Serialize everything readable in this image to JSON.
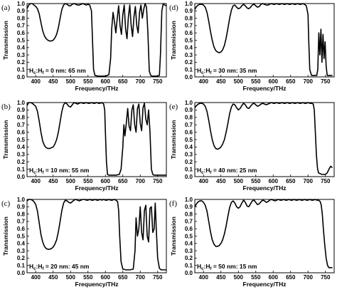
{
  "chart_data": [
    {
      "type": "line",
      "panel_label": "(a)",
      "annotation": {
        "main": "H",
        "sub1": "c",
        "sep": ":H",
        "sub2": "f",
        "rest": " = 0 nm: 65 nm"
      },
      "xlabel": "Frequency/THz",
      "ylabel": "Transmission",
      "xlim": [
        375,
        775
      ],
      "ylim": [
        0,
        1.0
      ],
      "xticks": [
        400,
        450,
        500,
        550,
        600,
        650,
        700,
        750
      ],
      "yticks": [
        0.0,
        0.1,
        0.2,
        0.3,
        0.4,
        0.5,
        0.6,
        0.7,
        0.8,
        0.9,
        1.0
      ],
      "x": [
        375,
        380,
        385,
        390,
        395,
        400,
        405,
        410,
        415,
        420,
        425,
        430,
        435,
        440,
        445,
        450,
        455,
        460,
        465,
        470,
        475,
        480,
        485,
        490,
        495,
        500,
        505,
        510,
        515,
        520,
        525,
        530,
        535,
        540,
        545,
        550,
        555,
        560,
        563,
        566,
        570,
        580,
        590,
        600,
        610,
        615,
        618,
        622,
        626,
        630,
        634,
        638,
        642,
        646,
        650,
        654,
        658,
        662,
        666,
        670,
        674,
        678,
        682,
        686,
        690,
        694,
        698,
        702,
        706,
        710,
        714,
        718,
        722,
        726,
        730,
        735,
        740,
        745,
        750,
        755,
        758,
        762,
        766,
        770,
        775
      ],
      "y": [
        0.93,
        0.98,
        1.0,
        1.0,
        0.98,
        0.96,
        0.93,
        0.86,
        0.74,
        0.63,
        0.56,
        0.52,
        0.5,
        0.49,
        0.49,
        0.5,
        0.53,
        0.58,
        0.67,
        0.8,
        0.92,
        0.98,
        1.0,
        0.99,
        0.97,
        0.97,
        0.99,
        1.0,
        0.99,
        0.98,
        0.98,
        0.99,
        1.0,
        0.99,
        0.98,
        0.99,
        0.98,
        0.9,
        0.5,
        0.1,
        0.02,
        0.01,
        0.01,
        0.01,
        0.03,
        0.25,
        0.65,
        0.88,
        0.75,
        0.6,
        0.8,
        0.97,
        0.7,
        0.58,
        0.85,
        0.98,
        0.65,
        0.52,
        0.82,
        0.98,
        0.7,
        0.55,
        0.82,
        0.96,
        0.7,
        0.6,
        0.88,
        0.98,
        0.8,
        0.92,
        1.0,
        0.95,
        0.6,
        0.08,
        0.02,
        0.01,
        0.01,
        0.01,
        0.01,
        0.02,
        0.3,
        0.9,
        1.0,
        0.98,
        0.97
      ]
    },
    {
      "type": "line",
      "panel_label": "(b)",
      "annotation": {
        "main": "H",
        "sub1": "c",
        "sep": ":H",
        "sub2": "f",
        "rest": " = 10 nm: 55 nm"
      },
      "xlabel": "Frequency/THz",
      "ylabel": "Transmission",
      "xlim": [
        375,
        775
      ],
      "ylim": [
        0,
        1.0
      ],
      "xticks": [
        400,
        450,
        500,
        550,
        600,
        650,
        700,
        750
      ],
      "yticks": [
        0.0,
        0.1,
        0.2,
        0.3,
        0.4,
        0.5,
        0.6,
        0.7,
        0.8,
        0.9,
        1.0
      ],
      "x": [
        375,
        380,
        385,
        390,
        395,
        400,
        405,
        410,
        415,
        420,
        425,
        430,
        435,
        440,
        445,
        450,
        455,
        460,
        465,
        470,
        475,
        480,
        485,
        490,
        495,
        500,
        505,
        510,
        515,
        520,
        525,
        530,
        535,
        540,
        545,
        550,
        555,
        560,
        565,
        570,
        575,
        580,
        585,
        590,
        595,
        598,
        600,
        603,
        606,
        610,
        620,
        630,
        640,
        645,
        650,
        653,
        656,
        660,
        664,
        668,
        672,
        676,
        680,
        684,
        688,
        692,
        696,
        700,
        704,
        708,
        712,
        716,
        720,
        724,
        728,
        732,
        736,
        740,
        745,
        750,
        755,
        760,
        765,
        770,
        775
      ],
      "y": [
        0.96,
        1.0,
        1.0,
        0.99,
        0.97,
        0.95,
        0.88,
        0.75,
        0.6,
        0.48,
        0.42,
        0.39,
        0.38,
        0.38,
        0.39,
        0.4,
        0.44,
        0.5,
        0.6,
        0.74,
        0.88,
        0.97,
        1.0,
        0.98,
        0.95,
        0.94,
        0.97,
        1.0,
        0.99,
        0.98,
        0.99,
        1.0,
        0.99,
        0.99,
        1.0,
        0.99,
        0.99,
        1.0,
        0.99,
        0.99,
        1.0,
        0.99,
        0.99,
        1.0,
        0.98,
        0.9,
        0.6,
        0.2,
        0.03,
        0.02,
        0.02,
        0.02,
        0.03,
        0.1,
        0.4,
        0.7,
        0.55,
        0.72,
        0.92,
        0.68,
        0.62,
        0.9,
        0.97,
        0.7,
        0.6,
        0.92,
        0.98,
        0.72,
        0.62,
        0.93,
        0.99,
        0.78,
        0.7,
        0.9,
        0.6,
        0.1,
        0.03,
        0.02,
        0.02,
        0.02,
        0.02,
        0.02,
        0.02,
        0.02,
        0.02
      ]
    },
    {
      "type": "line",
      "panel_label": "(c)",
      "annotation": {
        "main": "H",
        "sub1": "c",
        "sep": ":H",
        "sub2": "f",
        "rest": " = 20 nm: 45 nm"
      },
      "xlabel": "Frequency/THz",
      "ylabel": "Transmission",
      "xlim": [
        375,
        775
      ],
      "ylim": [
        0,
        1.0
      ],
      "xticks": [
        400,
        450,
        500,
        550,
        600,
        650,
        700,
        750
      ],
      "yticks": [
        0.0,
        0.1,
        0.2,
        0.3,
        0.4,
        0.5,
        0.6,
        0.7,
        0.8,
        0.9,
        1.0
      ],
      "x": [
        375,
        380,
        385,
        390,
        395,
        400,
        405,
        410,
        415,
        420,
        425,
        430,
        435,
        440,
        445,
        450,
        455,
        460,
        465,
        470,
        475,
        480,
        485,
        490,
        495,
        500,
        505,
        510,
        515,
        520,
        525,
        530,
        535,
        540,
        545,
        550,
        555,
        560,
        565,
        570,
        575,
        580,
        585,
        590,
        595,
        600,
        605,
        610,
        615,
        620,
        625,
        630,
        635,
        638,
        641,
        645,
        650,
        660,
        670,
        680,
        685,
        688,
        692,
        696,
        700,
        704,
        708,
        712,
        716,
        720,
        724,
        728,
        732,
        736,
        740,
        743,
        746,
        750,
        755,
        760,
        765,
        770,
        775
      ],
      "y": [
        0.98,
        1.0,
        1.0,
        0.99,
        0.97,
        0.93,
        0.84,
        0.68,
        0.52,
        0.42,
        0.36,
        0.33,
        0.32,
        0.32,
        0.33,
        0.35,
        0.39,
        0.45,
        0.56,
        0.7,
        0.85,
        0.95,
        0.99,
        0.98,
        0.96,
        0.95,
        0.97,
        0.99,
        1.0,
        0.99,
        0.98,
        0.99,
        1.0,
        1.0,
        0.99,
        0.99,
        1.0,
        0.99,
        0.99,
        1.0,
        0.99,
        0.99,
        1.0,
        0.99,
        1.0,
        0.99,
        0.99,
        1.0,
        0.99,
        0.99,
        1.0,
        0.99,
        0.97,
        0.85,
        0.5,
        0.15,
        0.05,
        0.04,
        0.04,
        0.05,
        0.3,
        0.75,
        0.5,
        0.6,
        0.9,
        0.55,
        0.45,
        0.85,
        0.92,
        0.5,
        0.42,
        0.88,
        0.9,
        0.55,
        0.6,
        0.95,
        0.6,
        0.2,
        0.06,
        0.04,
        0.04,
        0.04,
        0.04
      ]
    },
    {
      "type": "line",
      "panel_label": "(d)",
      "annotation": {
        "main": "H",
        "sub1": "c",
        "sep": ":H",
        "sub2": "f",
        "rest": " = 30 nm: 35 nm"
      },
      "xlabel": "Frequency/THz",
      "ylabel": "Transmission",
      "xlim": [
        375,
        775
      ],
      "ylim": [
        0,
        1.0
      ],
      "xticks": [
        400,
        450,
        500,
        550,
        600,
        650,
        700,
        750
      ],
      "yticks": [
        0.0,
        0.1,
        0.2,
        0.3,
        0.4,
        0.5,
        0.6,
        0.7,
        0.8,
        0.9,
        1.0
      ],
      "x": [
        375,
        380,
        385,
        390,
        395,
        400,
        405,
        410,
        415,
        420,
        425,
        430,
        435,
        440,
        445,
        450,
        455,
        460,
        465,
        470,
        475,
        480,
        485,
        490,
        495,
        500,
        505,
        510,
        515,
        520,
        525,
        530,
        535,
        540,
        545,
        550,
        555,
        560,
        565,
        570,
        575,
        580,
        585,
        590,
        595,
        600,
        605,
        610,
        615,
        620,
        625,
        630,
        635,
        640,
        645,
        650,
        655,
        660,
        665,
        670,
        675,
        680,
        685,
        690,
        695,
        700,
        702,
        705,
        710,
        720,
        725,
        728,
        731,
        734,
        737,
        740,
        743,
        746,
        749,
        752,
        755,
        760,
        765,
        770
      ],
      "y": [
        0.92,
        0.96,
        0.98,
        0.99,
        0.99,
        0.98,
        0.95,
        0.88,
        0.76,
        0.62,
        0.5,
        0.41,
        0.36,
        0.34,
        0.33,
        0.34,
        0.37,
        0.43,
        0.53,
        0.66,
        0.8,
        0.91,
        0.97,
        0.98,
        0.95,
        0.93,
        0.94,
        0.97,
        0.99,
        0.97,
        0.94,
        0.93,
        0.95,
        0.98,
        0.99,
        0.97,
        0.95,
        0.96,
        0.99,
        1.0,
        0.99,
        0.98,
        0.98,
        0.99,
        1.0,
        0.99,
        0.99,
        1.0,
        0.99,
        0.99,
        1.0,
        0.99,
        0.99,
        1.0,
        0.99,
        0.99,
        1.0,
        0.99,
        0.99,
        1.0,
        0.99,
        0.99,
        1.0,
        0.99,
        0.97,
        0.85,
        0.5,
        0.1,
        0.02,
        0.02,
        0.02,
        0.1,
        0.6,
        0.3,
        0.65,
        0.2,
        0.58,
        0.25,
        0.48,
        0.15,
        0.02,
        0.02,
        0.02,
        0.02
      ]
    },
    {
      "type": "line",
      "panel_label": "(e)",
      "annotation": {
        "main": "H",
        "sub1": "c",
        "sep": ":H",
        "sub2": "f",
        "rest": " = 40 nm: 25 nm"
      },
      "xlabel": "Frequency/THz",
      "ylabel": "Transmission",
      "xlim": [
        375,
        775
      ],
      "ylim": [
        0,
        1.0
      ],
      "xticks": [
        400,
        450,
        500,
        550,
        600,
        650,
        700,
        750
      ],
      "yticks": [
        0.0,
        0.1,
        0.2,
        0.3,
        0.4,
        0.5,
        0.6,
        0.7,
        0.8,
        0.9,
        1.0
      ],
      "x": [
        375,
        380,
        385,
        390,
        395,
        400,
        405,
        410,
        415,
        420,
        425,
        430,
        435,
        440,
        445,
        450,
        455,
        460,
        465,
        470,
        475,
        480,
        485,
        490,
        495,
        500,
        505,
        510,
        515,
        520,
        525,
        530,
        535,
        540,
        545,
        550,
        555,
        560,
        565,
        570,
        575,
        580,
        585,
        590,
        595,
        600,
        605,
        610,
        615,
        620,
        625,
        630,
        635,
        640,
        645,
        650,
        655,
        660,
        665,
        670,
        675,
        680,
        685,
        690,
        695,
        700,
        705,
        710,
        715,
        718,
        721,
        724,
        727,
        730,
        740,
        750,
        755,
        760,
        765,
        770
      ],
      "y": [
        0.93,
        0.96,
        0.98,
        0.99,
        0.99,
        0.98,
        0.95,
        0.88,
        0.76,
        0.62,
        0.5,
        0.42,
        0.38,
        0.37,
        0.38,
        0.4,
        0.44,
        0.5,
        0.6,
        0.72,
        0.85,
        0.94,
        0.98,
        0.97,
        0.93,
        0.9,
        0.92,
        0.96,
        0.99,
        0.97,
        0.93,
        0.92,
        0.95,
        0.98,
        0.99,
        0.97,
        0.95,
        0.96,
        0.98,
        0.99,
        0.98,
        0.97,
        0.98,
        0.99,
        1.0,
        0.99,
        0.99,
        1.0,
        0.99,
        0.99,
        1.0,
        0.99,
        0.99,
        1.0,
        0.99,
        0.99,
        1.0,
        0.99,
        0.99,
        1.0,
        0.99,
        0.99,
        1.0,
        0.99,
        0.99,
        1.0,
        0.99,
        0.99,
        0.98,
        0.9,
        0.6,
        0.3,
        0.12,
        0.05,
        0.03,
        0.03,
        0.05,
        0.1,
        0.14,
        0.12
      ]
    },
    {
      "type": "line",
      "panel_label": "(f)",
      "annotation": {
        "main": "H",
        "sub1": "c",
        "sep": ":H",
        "sub2": "f",
        "rest": " = 50 nm: 15 nm"
      },
      "xlabel": "Frequency/THz",
      "ylabel": "Transmission",
      "xlim": [
        375,
        775
      ],
      "ylim": [
        0,
        1.0
      ],
      "xticks": [
        400,
        450,
        500,
        550,
        600,
        650,
        700,
        750
      ],
      "yticks": [
        0.0,
        0.1,
        0.2,
        0.3,
        0.4,
        0.5,
        0.6,
        0.7,
        0.8,
        0.9,
        1.0
      ],
      "x": [
        375,
        380,
        385,
        390,
        395,
        400,
        405,
        410,
        415,
        420,
        425,
        430,
        435,
        440,
        445,
        450,
        455,
        460,
        465,
        470,
        475,
        480,
        485,
        490,
        495,
        500,
        505,
        510,
        515,
        520,
        525,
        530,
        535,
        540,
        545,
        550,
        555,
        560,
        565,
        570,
        575,
        580,
        585,
        590,
        595,
        600,
        605,
        610,
        615,
        620,
        625,
        630,
        635,
        640,
        645,
        650,
        655,
        660,
        665,
        670,
        675,
        680,
        685,
        690,
        695,
        700,
        705,
        710,
        715,
        720,
        725,
        730,
        735,
        738,
        741,
        744,
        748,
        752,
        756,
        760,
        765,
        770
      ],
      "y": [
        0.9,
        0.94,
        0.97,
        0.98,
        0.98,
        0.96,
        0.92,
        0.84,
        0.7,
        0.56,
        0.45,
        0.39,
        0.36,
        0.36,
        0.37,
        0.4,
        0.45,
        0.53,
        0.64,
        0.77,
        0.89,
        0.96,
        0.98,
        0.95,
        0.9,
        0.88,
        0.9,
        0.95,
        0.99,
        0.96,
        0.91,
        0.9,
        0.94,
        0.98,
        0.99,
        0.96,
        0.93,
        0.94,
        0.97,
        0.99,
        0.98,
        0.96,
        0.97,
        0.99,
        1.0,
        0.99,
        0.98,
        0.99,
        1.0,
        0.99,
        0.99,
        1.0,
        0.99,
        0.99,
        1.0,
        0.99,
        0.99,
        1.0,
        0.99,
        0.99,
        1.0,
        0.99,
        0.99,
        1.0,
        0.99,
        0.99,
        1.0,
        0.99,
        0.99,
        1.0,
        0.99,
        0.99,
        0.97,
        0.92,
        0.8,
        0.6,
        0.38,
        0.2,
        0.1,
        0.07,
        0.07,
        0.07
      ]
    }
  ]
}
